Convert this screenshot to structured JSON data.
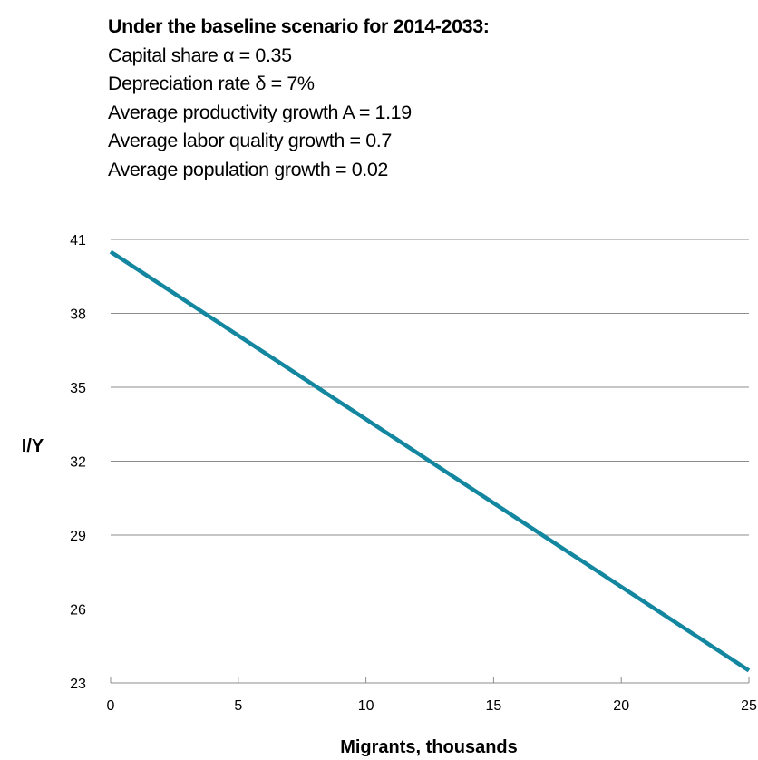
{
  "notes": {
    "heading": "Under the baseline scenario for 2014-2033:",
    "lines": [
      "Capital share α = 0.35",
      "Depreciation rate δ = 7%",
      "Average productivity growth A = 1.19",
      "Average labor quality growth = 0.7",
      "Average population growth = 0.02"
    ]
  },
  "chart_data": {
    "type": "line",
    "title": "",
    "xlabel": "Migrants, thousands",
    "ylabel": "I/Y",
    "xlim": [
      0,
      25
    ],
    "ylim": [
      23,
      41
    ],
    "x_ticks": [
      0,
      5,
      10,
      15,
      20,
      25
    ],
    "y_ticks": [
      23,
      26,
      29,
      32,
      35,
      38,
      41
    ],
    "grid": "horizontal",
    "legend": "none",
    "series": [
      {
        "color": "#1386A0",
        "x": [
          0,
          25
        ],
        "y": [
          40.5,
          23.5
        ]
      }
    ]
  }
}
